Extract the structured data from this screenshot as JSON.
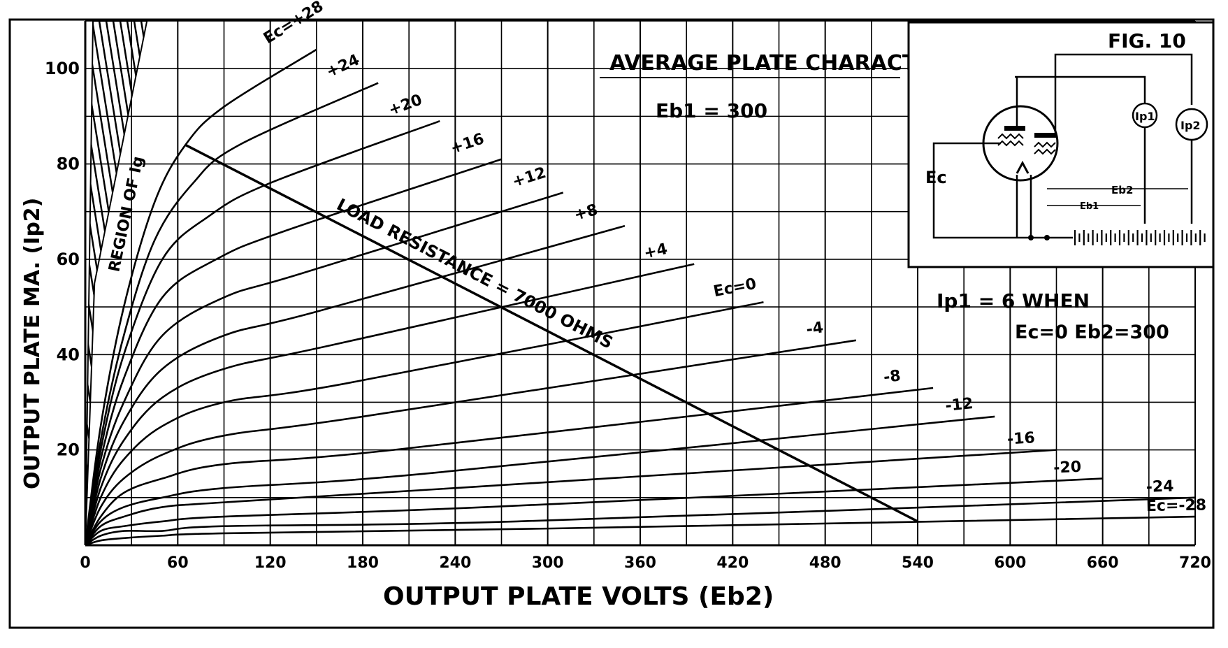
{
  "chart_data": {
    "type": "line",
    "title": "AVERAGE PLATE CHARACTERISTICS",
    "figure_label": "FIG. 10",
    "condition_label": "Eb1 = 300",
    "note_lines": [
      "Ip1 = 6   WHEN",
      "Ec=0  Eb2=300"
    ],
    "xlabel": "OUTPUT PLATE VOLTS (Eb2)",
    "ylabel": "OUTPUT PLATE MA. (Ip2)",
    "xlim": [
      0,
      720
    ],
    "ylim": [
      0,
      110
    ],
    "x_ticks": [
      0,
      60,
      120,
      180,
      240,
      300,
      360,
      420,
      480,
      540,
      600,
      660,
      720
    ],
    "y_ticks": [
      20,
      40,
      60,
      80,
      100
    ],
    "region_label": "REGION OF Ig",
    "load_line": {
      "label": "LOAD RESISTANCE = 7000 OHMS",
      "points": [
        [
          65,
          84
        ],
        [
          540,
          5
        ]
      ]
    },
    "series": [
      {
        "name": "Ec=+28",
        "points": [
          [
            0,
            0
          ],
          [
            10,
            25
          ],
          [
            25,
            50
          ],
          [
            45,
            72
          ],
          [
            65,
            84
          ],
          [
            90,
            92
          ],
          [
            150,
            104
          ]
        ]
      },
      {
        "name": "+24",
        "points": [
          [
            0,
            0
          ],
          [
            10,
            22
          ],
          [
            25,
            44
          ],
          [
            45,
            64
          ],
          [
            70,
            76
          ],
          [
            100,
            84
          ],
          [
            190,
            97
          ]
        ]
      },
      {
        "name": "+20",
        "points": [
          [
            0,
            0
          ],
          [
            10,
            20
          ],
          [
            25,
            40
          ],
          [
            50,
            60
          ],
          [
            80,
            69
          ],
          [
            120,
            76
          ],
          [
            230,
            89
          ]
        ]
      },
      {
        "name": "+16",
        "points": [
          [
            0,
            0
          ],
          [
            10,
            18
          ],
          [
            25,
            35
          ],
          [
            50,
            52
          ],
          [
            85,
            60
          ],
          [
            130,
            66
          ],
          [
            270,
            81
          ]
        ]
      },
      {
        "name": "+12",
        "points": [
          [
            0,
            0
          ],
          [
            10,
            16
          ],
          [
            25,
            30
          ],
          [
            50,
            44
          ],
          [
            90,
            52
          ],
          [
            140,
            57
          ],
          [
            310,
            74
          ]
        ]
      },
      {
        "name": "+8",
        "points": [
          [
            0,
            0
          ],
          [
            10,
            14
          ],
          [
            25,
            26
          ],
          [
            50,
            37
          ],
          [
            90,
            44
          ],
          [
            150,
            49
          ],
          [
            350,
            67
          ]
        ]
      },
      {
        "name": "+4",
        "points": [
          [
            0,
            0
          ],
          [
            10,
            12
          ],
          [
            25,
            22
          ],
          [
            50,
            31
          ],
          [
            90,
            37
          ],
          [
            160,
            42
          ],
          [
            395,
            59
          ]
        ]
      },
      {
        "name": "Ec=0",
        "points": [
          [
            0,
            0
          ],
          [
            10,
            10
          ],
          [
            25,
            18
          ],
          [
            50,
            25
          ],
          [
            90,
            30
          ],
          [
            170,
            34
          ],
          [
            440,
            51
          ]
        ]
      },
      {
        "name": "-4",
        "points": [
          [
            0,
            0
          ],
          [
            10,
            8
          ],
          [
            25,
            14
          ],
          [
            50,
            19
          ],
          [
            90,
            23
          ],
          [
            180,
            27
          ],
          [
            500,
            43
          ]
        ]
      },
      {
        "name": "-8",
        "points": [
          [
            0,
            0
          ],
          [
            10,
            6
          ],
          [
            25,
            11
          ],
          [
            50,
            14
          ],
          [
            90,
            17
          ],
          [
            200,
            20
          ],
          [
            550,
            33
          ]
        ]
      },
      {
        "name": "-12",
        "points": [
          [
            0,
            0
          ],
          [
            10,
            5
          ],
          [
            25,
            8
          ],
          [
            50,
            10
          ],
          [
            90,
            12
          ],
          [
            220,
            15
          ],
          [
            590,
            27
          ]
        ]
      },
      {
        "name": "-16",
        "points": [
          [
            0,
            0
          ],
          [
            10,
            4
          ],
          [
            25,
            6
          ],
          [
            50,
            8
          ],
          [
            90,
            9
          ],
          [
            240,
            12
          ],
          [
            630,
            20
          ]
        ]
      },
      {
        "name": "-20",
        "points": [
          [
            0,
            0
          ],
          [
            10,
            3
          ],
          [
            25,
            4
          ],
          [
            50,
            5
          ],
          [
            90,
            6
          ],
          [
            260,
            8
          ],
          [
            660,
            14
          ]
        ]
      },
      {
        "name": "-24",
        "points": [
          [
            0,
            0
          ],
          [
            10,
            2
          ],
          [
            25,
            3
          ],
          [
            50,
            3
          ],
          [
            90,
            4
          ],
          [
            280,
            5
          ],
          [
            720,
            10
          ]
        ]
      },
      {
        "name": "Ec=-28",
        "points": [
          [
            0,
            0
          ],
          [
            10,
            1
          ],
          [
            25,
            1.5
          ],
          [
            50,
            2
          ],
          [
            90,
            2.5
          ],
          [
            300,
            3.5
          ],
          [
            720,
            6
          ]
        ]
      }
    ]
  },
  "schematic": {
    "labels": {
      "ec": "Ec",
      "ip1": "Ip1",
      "ip2": "Ip2",
      "eb2": "Eb2",
      "eb1": "Eb1"
    }
  }
}
